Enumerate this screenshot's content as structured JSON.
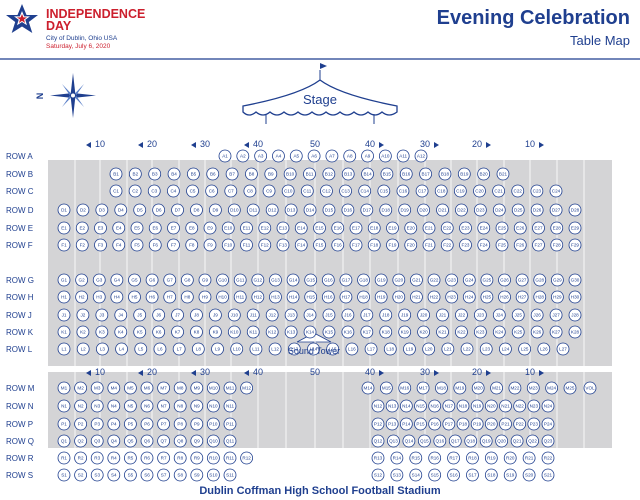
{
  "colors": {
    "navy": "#1f3f8f",
    "red": "#cc1f2d",
    "field": "#d4d4d6",
    "yardline": "#f2f2f2"
  },
  "logo": {
    "line1": "INDEPENDENCE",
    "line2": "DAY",
    "city": "City of Dublin, Ohio USA",
    "date": "Saturday, July 6, 2020",
    "icon": "star-icon"
  },
  "header": {
    "title": "Evening Celebration",
    "subtitle": "Table Map"
  },
  "compass": {
    "label": "N",
    "icon": "compass-icon"
  },
  "stage": {
    "label": "Stage",
    "icon": "tent-icon"
  },
  "sound_tower": {
    "label": "Sound Tower",
    "icon": "tent-icon"
  },
  "yard_labels": [
    "10",
    "20",
    "30",
    "40",
    "50",
    "40",
    "30",
    "20",
    "10"
  ],
  "footer": {
    "label": "Dublin Coffman High School Football Stadium"
  },
  "rows": [
    {
      "label": "ROW A",
      "letter": "A",
      "segments": [
        [
          1,
          12
        ]
      ]
    },
    {
      "label": "ROW B",
      "letter": "B",
      "segments": [
        [
          1,
          21
        ]
      ]
    },
    {
      "label": "ROW C",
      "letter": "C",
      "segments": [
        [
          1,
          24
        ]
      ]
    },
    {
      "label": "ROW D",
      "letter": "D",
      "segments": [
        [
          1,
          28
        ]
      ]
    },
    {
      "label": "ROW E",
      "letter": "E",
      "segments": [
        [
          1,
          29
        ]
      ]
    },
    {
      "label": "ROW F",
      "letter": "F",
      "segments": [
        [
          1,
          29
        ]
      ]
    },
    {
      "label": "ROW G",
      "letter": "G",
      "segments": [
        [
          1,
          30
        ]
      ]
    },
    {
      "label": "ROW H",
      "letter": "H",
      "segments": [
        [
          1,
          30
        ]
      ]
    },
    {
      "label": "ROW J",
      "letter": "J",
      "segments": [
        [
          1,
          28
        ]
      ]
    },
    {
      "label": "ROW K",
      "letter": "K",
      "segments": [
        [
          1,
          28
        ]
      ]
    },
    {
      "label": "ROW L",
      "letter": "L",
      "segments": [
        [
          1,
          27
        ]
      ]
    },
    {
      "label": "ROW M",
      "letter": "M",
      "segments": [
        [
          1,
          12
        ],
        [
          14,
          25
        ]
      ],
      "extra": "VOL"
    },
    {
      "label": "ROW N",
      "letter": "N",
      "segments": [
        [
          1,
          11
        ],
        [
          12,
          24
        ]
      ]
    },
    {
      "label": "ROW P",
      "letter": "P",
      "segments": [
        [
          1,
          11
        ],
        [
          12,
          24
        ]
      ]
    },
    {
      "label": "ROW Q",
      "letter": "Q",
      "segments": [
        [
          1,
          11
        ],
        [
          12,
          23
        ]
      ]
    },
    {
      "label": "ROW R",
      "letter": "R",
      "segments": [
        [
          1,
          12
        ],
        [
          13,
          22
        ]
      ]
    },
    {
      "label": "ROW S",
      "letter": "S",
      "segments": [
        [
          1,
          11
        ],
        [
          12,
          21
        ]
      ]
    }
  ]
}
